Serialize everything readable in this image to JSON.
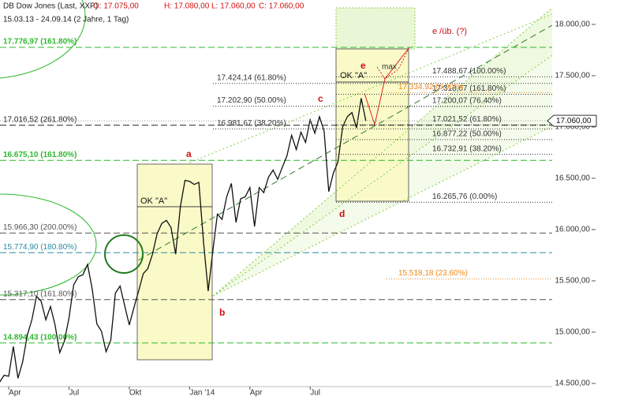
{
  "chart_data": {
    "type": "line",
    "header": {
      "range": "15.03.13 - 24.09.14 (2 Jahre, 1 Tag)",
      "quote": [
        "O: 17.075,00",
        "H: 17.080,00",
        "L: 17.060,00",
        "C: 17.060,00"
      ]
    },
    "categories": [
      null,
      null,
      null,
      "Apr",
      null,
      null,
      null,
      null,
      null,
      null,
      null,
      null,
      null,
      null,
      null,
      null,
      "Jul",
      null,
      null,
      null,
      null,
      null,
      null,
      null,
      null,
      null,
      null,
      null,
      null,
      "Okt",
      null,
      null,
      null,
      null,
      null,
      null,
      null,
      null,
      null,
      null,
      null,
      null,
      "Jan '14",
      null,
      null,
      null,
      null,
      null,
      null,
      null,
      null,
      null,
      null,
      null,
      null,
      "Apr",
      null,
      null,
      null,
      null,
      null,
      null,
      null,
      null,
      null,
      null,
      null,
      null,
      "Jul",
      null,
      null,
      null,
      null,
      null,
      null,
      null,
      null,
      null,
      null,
      null,
      null
    ],
    "series": [
      {
        "name": "DB Dow Jones (Last, XXP)",
        "color": "#111111",
        "values": [
          14510,
          14510,
          14580,
          14570,
          14860,
          14550,
          14710,
          14970,
          15120,
          15350,
          15300,
          15120,
          15250,
          15070,
          14800,
          14910,
          15140,
          15460,
          15540,
          15560,
          15660,
          15420,
          15080,
          15010,
          14810,
          14920,
          15380,
          15450,
          15260,
          15070,
          15240,
          15400,
          15570,
          15620,
          15760,
          15960,
          16060,
          16090,
          16020,
          15760,
          16220,
          16480,
          16470,
          16440,
          16460,
          15880,
          15400,
          15790,
          16150,
          16100,
          16320,
          16450,
          16070,
          16300,
          16320,
          16410,
          16030,
          16410,
          16360,
          16510,
          16580,
          16490,
          16610,
          16720,
          16920,
          16780,
          16950,
          16850,
          17070,
          16940,
          17100,
          16960,
          16370,
          16550,
          16660,
          17000,
          17100,
          17140,
          16990,
          17280,
          17060
        ]
      }
    ],
    "ylim": [
      14469,
      18238
    ],
    "yticks": [
      {
        "value": 14500,
        "label": "14.500,00"
      },
      {
        "value": 15000,
        "label": "15.000,00"
      },
      {
        "value": 15500,
        "label": "15.500,00"
      },
      {
        "value": 16000,
        "label": "16.000,00"
      },
      {
        "value": 16500,
        "label": "16.500,00"
      },
      {
        "value": 17000,
        "label": "17.000,00"
      },
      {
        "value": 17500,
        "label": "17.500,00"
      },
      {
        "value": 18000,
        "label": "18.000,00"
      }
    ],
    "last_price": {
      "value": 17060,
      "label": "17.060,00"
    },
    "left_levels": [
      {
        "value": 17776.97,
        "label": "17.776,97 (161.80%)",
        "color": "#2db82d"
      },
      {
        "value": 17016.52,
        "label": "17.016,52 (261.80%)",
        "color": "#222222"
      },
      {
        "value": 16675.1,
        "label": "16.675,10 (161.80%)",
        "color": "#2db82d"
      },
      {
        "value": 15966.3,
        "label": "15.966,30 (200.00%)",
        "color": "#555555"
      },
      {
        "value": 15774.9,
        "label": "15.774,90 (180.80%)",
        "color": "#2a8aa0"
      },
      {
        "value": 15317.1,
        "label": "15.317,10 (161.80%)",
        "color": "#555555"
      },
      {
        "value": 14894.43,
        "label": "14.894,43 (100.00%)",
        "color": "#2db82d"
      }
    ],
    "mid_levels": [
      {
        "value": 17424.14,
        "label": "17.424,14 (61.80%)",
        "color": "#333333"
      },
      {
        "value": 17202.9,
        "label": "17.202,90 (50.00%)",
        "color": "#333333"
      },
      {
        "value": 16981.67,
        "label": "16.981,67 (38.20%)",
        "color": "#333333"
      }
    ],
    "box_levels": [
      {
        "value": 17488.67,
        "label": "17.488,67 (100.00%)",
        "color": "#333333"
      },
      {
        "value": 17318.67,
        "label": "17.318,67 (161.80%)",
        "color": "#333333"
      },
      {
        "value": 17200.07,
        "label": "17.200,07 (76.40%)",
        "color": "#333333"
      },
      {
        "value": 17021.52,
        "label": "17.021,52 (61.80%)",
        "color": "#333333"
      },
      {
        "value": 16877.22,
        "label": "16.877,22 (50.00%)",
        "color": "#333333"
      },
      {
        "value": 16732.91,
        "label": "16.732,91 (38.20%)",
        "color": "#333333"
      },
      {
        "value": 16265.76,
        "label": "16.265,76 (0.00%)",
        "color": "#333333"
      }
    ],
    "orange_levels": [
      {
        "value": 17334.92,
        "label": "17.334,92 (0.00%)",
        "color": "#f08a1c"
      },
      {
        "value": 15518.18,
        "label": "15.518,18 (23.60%)",
        "color": "#f08a1c"
      }
    ],
    "labels": [
      "a",
      "b",
      "c",
      "d",
      "e",
      "OK \"A\"",
      "OK \"A\"",
      "e /üb. (?)",
      "max"
    ]
  }
}
